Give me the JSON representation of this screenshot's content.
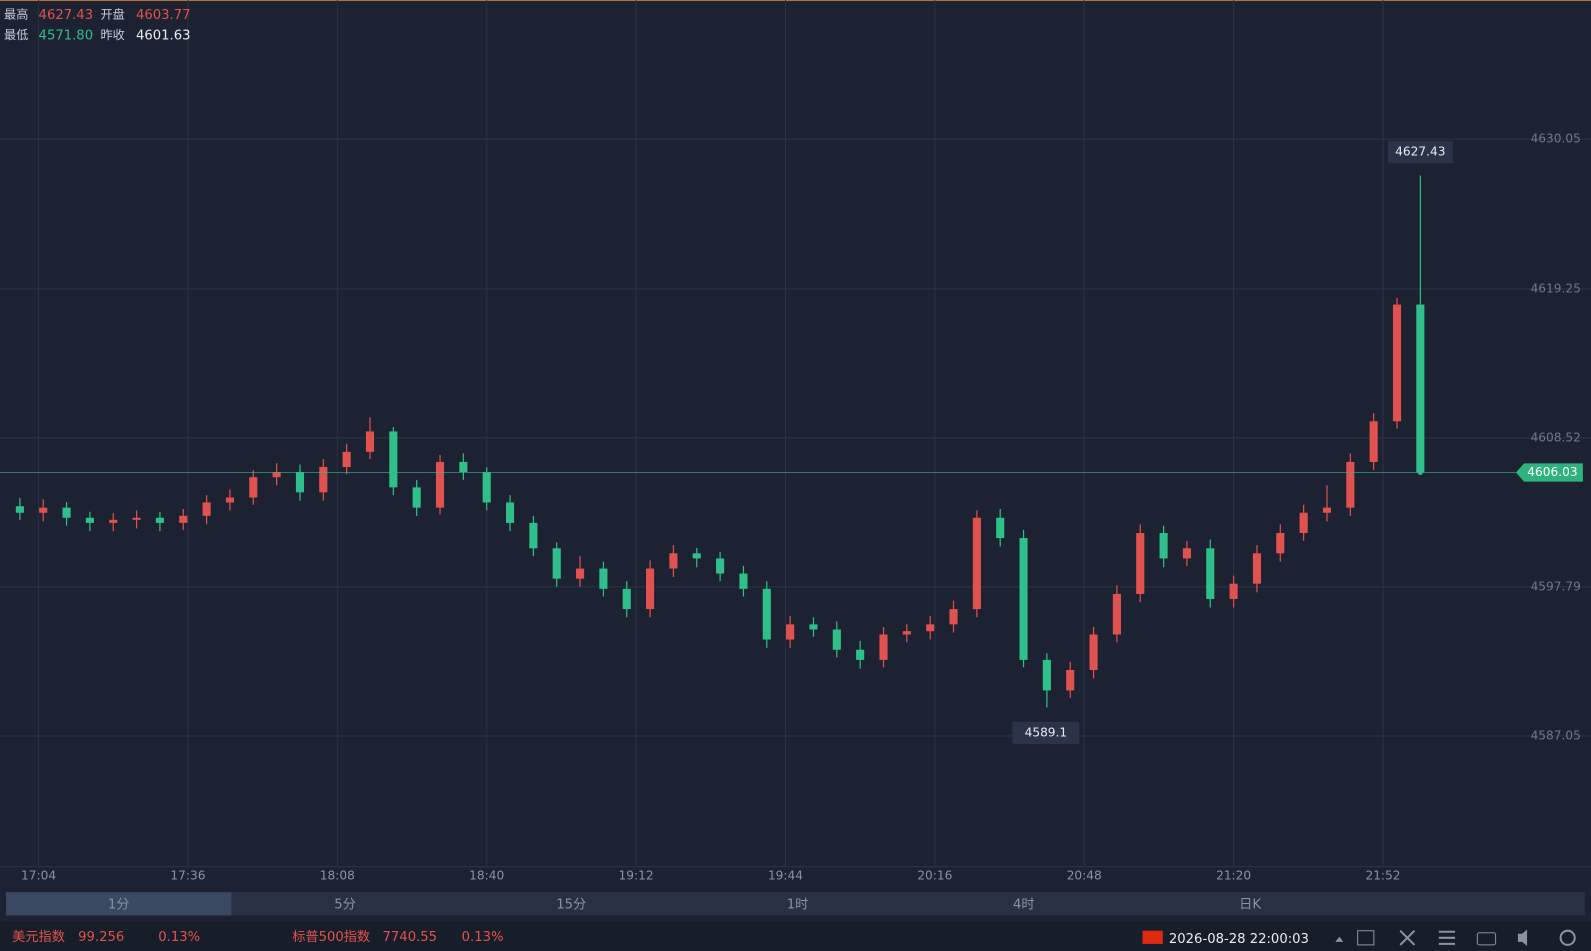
{
  "header": {
    "high_label": "最高",
    "high": "4627.43",
    "open_label": "开盘",
    "open": "4603.77",
    "low_label": "最低",
    "low": "4571.80",
    "prev_close_label": "昨收",
    "prev_close": "4601.63"
  },
  "chart_data": {
    "type": "candlestick",
    "x": [
      "17:00",
      "17:05",
      "17:10",
      "17:15",
      "17:20",
      "17:25",
      "17:30",
      "17:35",
      "17:40",
      "17:45",
      "17:50",
      "17:55",
      "18:00",
      "18:05",
      "18:10",
      "18:15",
      "18:20",
      "18:25",
      "18:30",
      "18:35",
      "18:40",
      "18:45",
      "18:50",
      "18:55",
      "19:00",
      "19:05",
      "19:10",
      "19:15",
      "19:20",
      "19:25",
      "19:30",
      "19:35",
      "19:40",
      "19:45",
      "19:50",
      "19:55",
      "20:00",
      "20:05",
      "20:10",
      "20:15",
      "20:20",
      "20:25",
      "20:30",
      "20:35",
      "20:40",
      "20:45",
      "20:50",
      "20:55",
      "21:00",
      "21:05",
      "21:10",
      "21:15",
      "21:20",
      "21:25",
      "21:30",
      "21:35",
      "21:40",
      "21:45",
      "21:50",
      "21:55",
      "22:00"
    ],
    "open": [
      4603.6,
      4603.13,
      4603.5,
      4602.77,
      4602.4,
      4602.62,
      4602.77,
      4602.4,
      4602.91,
      4603.87,
      4604.23,
      4605.69,
      4606.06,
      4604.6,
      4606.43,
      4607.52,
      4608.99,
      4604.96,
      4603.5,
      4606.79,
      4606.06,
      4603.87,
      4602.4,
      4600.57,
      4598.38,
      4599.11,
      4597.65,
      4596.19,
      4599.11,
      4600.21,
      4599.84,
      4598.75,
      4597.65,
      4594.0,
      4595.09,
      4594.72,
      4593.26,
      4592.53,
      4594.36,
      4594.6,
      4595.09,
      4596.19,
      4602.77,
      4601.31,
      4592.53,
      4590.33,
      4591.8,
      4594.36,
      4597.28,
      4601.67,
      4599.84,
      4600.57,
      4596.92,
      4598.02,
      4600.21,
      4601.67,
      4603.13,
      4603.5,
      4606.79,
      4609.72,
      4618.13
    ],
    "high": [
      4604.2,
      4604.1,
      4603.9,
      4603.2,
      4603.1,
      4603.3,
      4603.2,
      4603.4,
      4604.4,
      4604.8,
      4606.2,
      4606.7,
      4606.6,
      4607.0,
      4608.1,
      4610.0,
      4609.3,
      4605.5,
      4607.3,
      4607.4,
      4606.4,
      4604.4,
      4602.9,
      4601.0,
      4600.0,
      4599.6,
      4598.2,
      4599.7,
      4600.8,
      4600.6,
      4600.3,
      4599.3,
      4598.2,
      4595.7,
      4595.6,
      4595.3,
      4593.9,
      4594.9,
      4595.1,
      4595.7,
      4596.8,
      4603.3,
      4603.4,
      4601.9,
      4593.0,
      4592.4,
      4594.9,
      4597.9,
      4602.3,
      4602.2,
      4601.1,
      4601.2,
      4598.6,
      4600.8,
      4602.3,
      4603.7,
      4605.1,
      4607.4,
      4610.3,
      4618.6,
      4627.43
    ],
    "low": [
      4602.6,
      4602.5,
      4602.2,
      4601.8,
      4601.8,
      4602.0,
      4601.8,
      4601.9,
      4602.3,
      4603.3,
      4603.7,
      4605.1,
      4604.0,
      4604.0,
      4605.9,
      4607.0,
      4604.4,
      4602.9,
      4603.0,
      4605.5,
      4603.3,
      4601.8,
      4600.0,
      4597.8,
      4597.8,
      4597.1,
      4595.6,
      4595.6,
      4598.5,
      4599.2,
      4598.2,
      4597.1,
      4593.4,
      4593.4,
      4594.2,
      4592.7,
      4591.9,
      4592.0,
      4593.8,
      4594.0,
      4594.5,
      4595.6,
      4600.7,
      4592.0,
      4589.1,
      4589.8,
      4591.2,
      4593.8,
      4596.7,
      4599.2,
      4599.3,
      4596.3,
      4596.3,
      4597.4,
      4599.6,
      4601.1,
      4602.5,
      4602.9,
      4606.2,
      4609.2,
      4606.03
    ],
    "close": [
      4603.13,
      4603.5,
      4602.77,
      4602.4,
      4602.62,
      4602.77,
      4602.4,
      4602.91,
      4603.87,
      4604.23,
      4605.69,
      4606.06,
      4604.6,
      4606.43,
      4607.52,
      4608.99,
      4604.96,
      4603.5,
      4606.79,
      4606.06,
      4603.87,
      4602.4,
      4600.57,
      4598.38,
      4599.11,
      4597.65,
      4596.19,
      4599.11,
      4600.21,
      4599.84,
      4598.75,
      4597.65,
      4594.0,
      4595.09,
      4594.72,
      4593.26,
      4592.53,
      4594.36,
      4594.6,
      4595.09,
      4596.19,
      4602.77,
      4601.31,
      4592.53,
      4590.33,
      4591.8,
      4594.36,
      4597.28,
      4601.67,
      4599.84,
      4600.57,
      4596.92,
      4598.02,
      4600.21,
      4601.67,
      4603.13,
      4603.5,
      4606.79,
      4609.72,
      4618.13,
      4606.03
    ],
    "up_color": "#e0524f",
    "down_color": "#2fbf8a",
    "ylim": [
      4577.7,
      4640.07
    ],
    "yticks": [
      4587.05,
      4597.79,
      4608.52,
      4619.25,
      4630.05
    ],
    "xticks": [
      "17:04",
      "17:36",
      "18:08",
      "18:40",
      "19:12",
      "19:44",
      "20:16",
      "20:48",
      "21:20",
      "21:52"
    ],
    "grid": true
  },
  "tabs": [
    "1分",
    "5分",
    "15分",
    "1时",
    "4时",
    "日K"
  ],
  "footer": {
    "usd_index_name": "美元指数",
    "usd_index_value": "99.256",
    "usd_index_change": "0.13%",
    "spx_name": "标普500指数",
    "spx_value": "7740.55",
    "spx_change": "0.13%",
    "datetime": "2026-08-28 22:00:03"
  }
}
